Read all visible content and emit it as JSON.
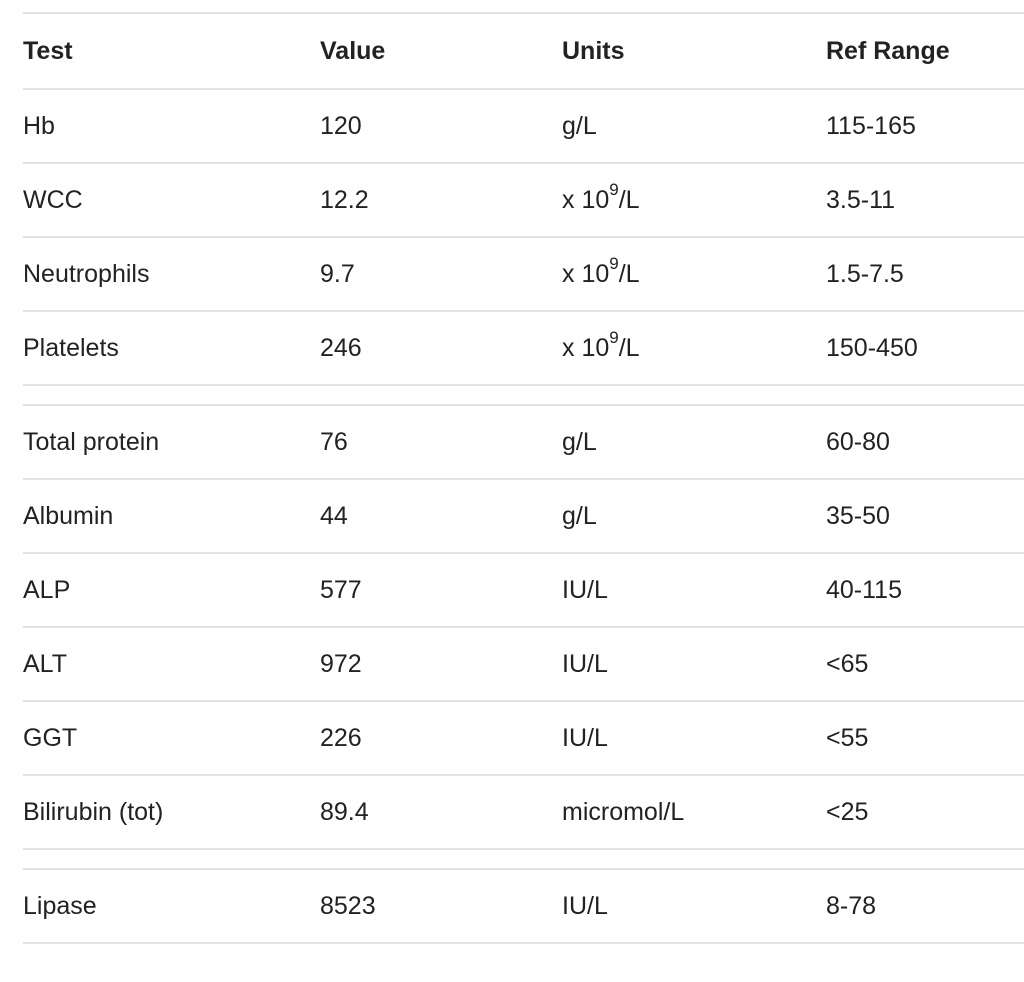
{
  "table": {
    "headers": {
      "test": "Test",
      "value": "Value",
      "units": "Units",
      "ref_range": "Ref Range"
    },
    "groups": [
      {
        "rows": [
          {
            "test": "Hb",
            "value": "120",
            "units": "g/L",
            "ref_range": "115-165"
          },
          {
            "test": "WCC",
            "value": "12.2",
            "units_prefix": "x 10",
            "units_sup": "9",
            "units_suffix": "/L",
            "ref_range": "3.5-11"
          },
          {
            "test": "Neutrophils",
            "value": "9.7",
            "units_prefix": "x 10",
            "units_sup": "9",
            "units_suffix": "/L",
            "ref_range": "1.5-7.5"
          },
          {
            "test": "Platelets",
            "value": "246",
            "units_prefix": "x 10",
            "units_sup": "9",
            "units_suffix": "/L",
            "ref_range": "150-450"
          }
        ]
      },
      {
        "rows": [
          {
            "test": "Total protein",
            "value": "76",
            "units": "g/L",
            "ref_range": "60-80"
          },
          {
            "test": "Albumin",
            "value": "44",
            "units": "g/L",
            "ref_range": "35-50"
          },
          {
            "test": "ALP",
            "value": "577",
            "units": "IU/L",
            "ref_range": "40-115"
          },
          {
            "test": "ALT",
            "value": "972",
            "units": "IU/L",
            "ref_range": "<65"
          },
          {
            "test": "GGT",
            "value": "226",
            "units": "IU/L",
            "ref_range": "<55"
          },
          {
            "test": "Bilirubin (tot)",
            "value": "89.4",
            "units": "micromol/L",
            "ref_range": "<25"
          }
        ]
      },
      {
        "rows": [
          {
            "test": "Lipase",
            "value": "8523",
            "units": "IU/L",
            "ref_range": "8-78"
          }
        ]
      }
    ]
  }
}
